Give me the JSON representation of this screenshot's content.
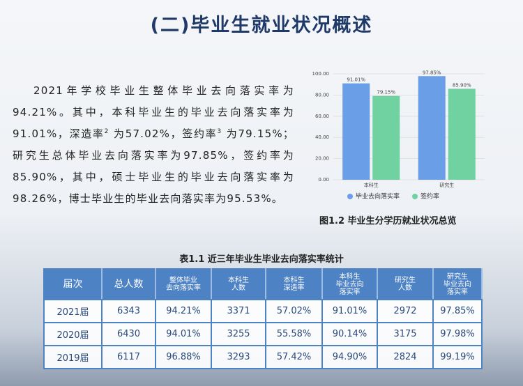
{
  "header": {
    "title": "(二)毕业生就业状况概述"
  },
  "body": [
    "2021年学校毕业生整体毕业去向落实率为94.21%。其中，本科毕业生的毕业去向落实率为91.01%，深造率",
    "2",
    " 为57.02%，签约率",
    "3",
    " 为79.15%；研究生总体毕业去向落实率为97.85%，签约率为85.90%，其中，硕士毕业生的毕业去向落实率为98.26%，博士毕业生的毕业去向落实率为95.53%。"
  ],
  "chart_data": {
    "type": "bar",
    "categories": [
      "本科生",
      "研究生"
    ],
    "series": [
      {
        "name": "毕业去向落实率",
        "color": "#6a9ee6",
        "values": [
          91.01,
          97.85
        ],
        "value_labels": [
          "91.01%",
          "97.85%"
        ]
      },
      {
        "name": "签约率",
        "color": "#6fd2a0",
        "values": [
          79.15,
          85.9
        ],
        "value_labels": [
          "79.15%",
          "85.90%"
        ]
      }
    ],
    "ylim": [
      0,
      100
    ],
    "yticks": [
      {
        "value": 0,
        "label": "0.00"
      },
      {
        "value": 20,
        "label": "20.00"
      },
      {
        "value": 40,
        "label": "40.00"
      },
      {
        "value": 60,
        "label": "60.00"
      },
      {
        "value": 80,
        "label": "80.00"
      },
      {
        "value": 100,
        "label": "100.00"
      }
    ],
    "grid": true,
    "legend": "bottom"
  },
  "figure_caption": "图1.2  毕业生分学历就业状况总览",
  "table": {
    "caption": "表1.1  近三年毕业生毕业去向落实率统计",
    "header": [
      [
        "届次"
      ],
      [
        "总人数"
      ],
      [
        "整体毕业",
        "去向落实率"
      ],
      [
        "本科生",
        "人数"
      ],
      [
        "本科生",
        "深造率"
      ],
      [
        "本科生",
        "毕业去向",
        "落实率"
      ],
      [
        "研究生",
        "人数"
      ],
      [
        "研究生",
        "毕业去向",
        "落实率"
      ]
    ],
    "rows": [
      [
        "2021届",
        "6343",
        "94.21%",
        "3371",
        "57.02%",
        "91.01%",
        "2972",
        "97.85%"
      ],
      [
        "2020届",
        "6430",
        "94.01%",
        "3255",
        "55.58%",
        "90.14%",
        "3175",
        "97.98%"
      ],
      [
        "2019届",
        "6117",
        "96.88%",
        "3293",
        "57.42%",
        "94.90%",
        "2824",
        "99.19%"
      ]
    ]
  }
}
